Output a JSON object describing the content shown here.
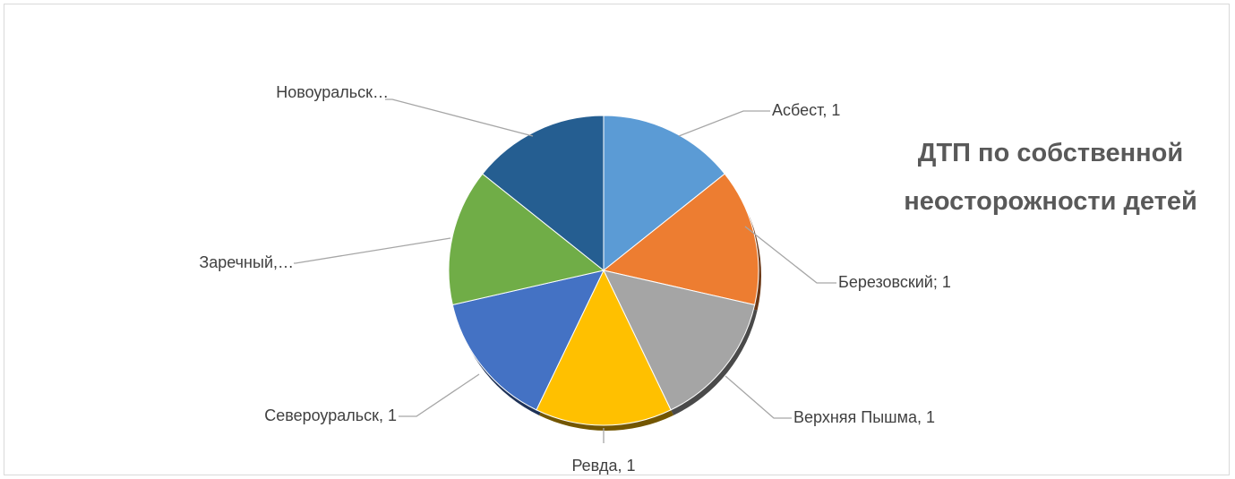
{
  "chart_data": {
    "type": "pie",
    "title": "ДТП по собственной неосторожности детей",
    "categories": [
      "Асбест",
      "Березовский",
      "Верхняя Пышма",
      "Ревда",
      "Североуральск",
      "Заречный",
      "Новоуральск"
    ],
    "values": [
      1,
      1,
      1,
      1,
      1,
      1,
      1
    ],
    "data_labels": [
      "Асбест, 1",
      "Березовский; 1",
      "Верхняя Пышма, 1",
      "Ревда, 1",
      "Североуральск, 1",
      "Заречный,…",
      "Новоуральск…"
    ],
    "colors": [
      "#5b9bd5",
      "#ed7d31",
      "#a5a5a5",
      "#ffc000",
      "#4472c4",
      "#70ad47",
      "#255e91"
    ],
    "legend": "none"
  }
}
